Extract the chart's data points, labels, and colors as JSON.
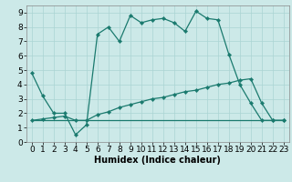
{
  "xlabel": "Humidex (Indice chaleur)",
  "bg_color": "#cce9e8",
  "grid_color": "#aad4d3",
  "line_color": "#1a7a6e",
  "line1_x": [
    0,
    1,
    2,
    3,
    4,
    5,
    6,
    7,
    8,
    9,
    10,
    11,
    12,
    13,
    14,
    15,
    16,
    17,
    18,
    19,
    20,
    21,
    22,
    23
  ],
  "line1_y": [
    4.8,
    3.2,
    2.0,
    2.0,
    0.5,
    1.2,
    7.5,
    8.0,
    7.0,
    8.8,
    8.3,
    8.5,
    8.6,
    8.3,
    7.7,
    9.1,
    8.6,
    8.5,
    6.1,
    4.0,
    2.7,
    1.5,
    1.5,
    1.5
  ],
  "line2_x": [
    0,
    1,
    2,
    3,
    4,
    5,
    6,
    7,
    8,
    9,
    10,
    11,
    12,
    13,
    14,
    15,
    16,
    17,
    18,
    19,
    20,
    21,
    22,
    23
  ],
  "line2_y": [
    1.5,
    1.6,
    1.7,
    1.8,
    1.5,
    1.5,
    1.9,
    2.1,
    2.4,
    2.6,
    2.8,
    3.0,
    3.1,
    3.3,
    3.5,
    3.6,
    3.8,
    4.0,
    4.1,
    4.3,
    4.4,
    2.7,
    1.5,
    1.5
  ],
  "line3_x": [
    0,
    1,
    2,
    3,
    4,
    5,
    6,
    7,
    8,
    9,
    10,
    11,
    12,
    13,
    14,
    15,
    16,
    17,
    18,
    19,
    20,
    21,
    22,
    23
  ],
  "line3_y": [
    1.5,
    1.5,
    1.5,
    1.5,
    1.5,
    1.5,
    1.5,
    1.5,
    1.5,
    1.5,
    1.5,
    1.5,
    1.5,
    1.5,
    1.5,
    1.5,
    1.5,
    1.5,
    1.5,
    1.5,
    1.5,
    1.5,
    1.5,
    1.5
  ],
  "xlim": [
    -0.5,
    23.5
  ],
  "ylim": [
    0,
    9.5
  ],
  "yticks": [
    0,
    1,
    2,
    3,
    4,
    5,
    6,
    7,
    8,
    9
  ],
  "xticks": [
    0,
    1,
    2,
    3,
    4,
    5,
    6,
    7,
    8,
    9,
    10,
    11,
    12,
    13,
    14,
    15,
    16,
    17,
    18,
    19,
    20,
    21,
    22,
    23
  ],
  "title_fontsize": 7.5,
  "axis_fontsize": 7,
  "tick_fontsize": 6.5
}
